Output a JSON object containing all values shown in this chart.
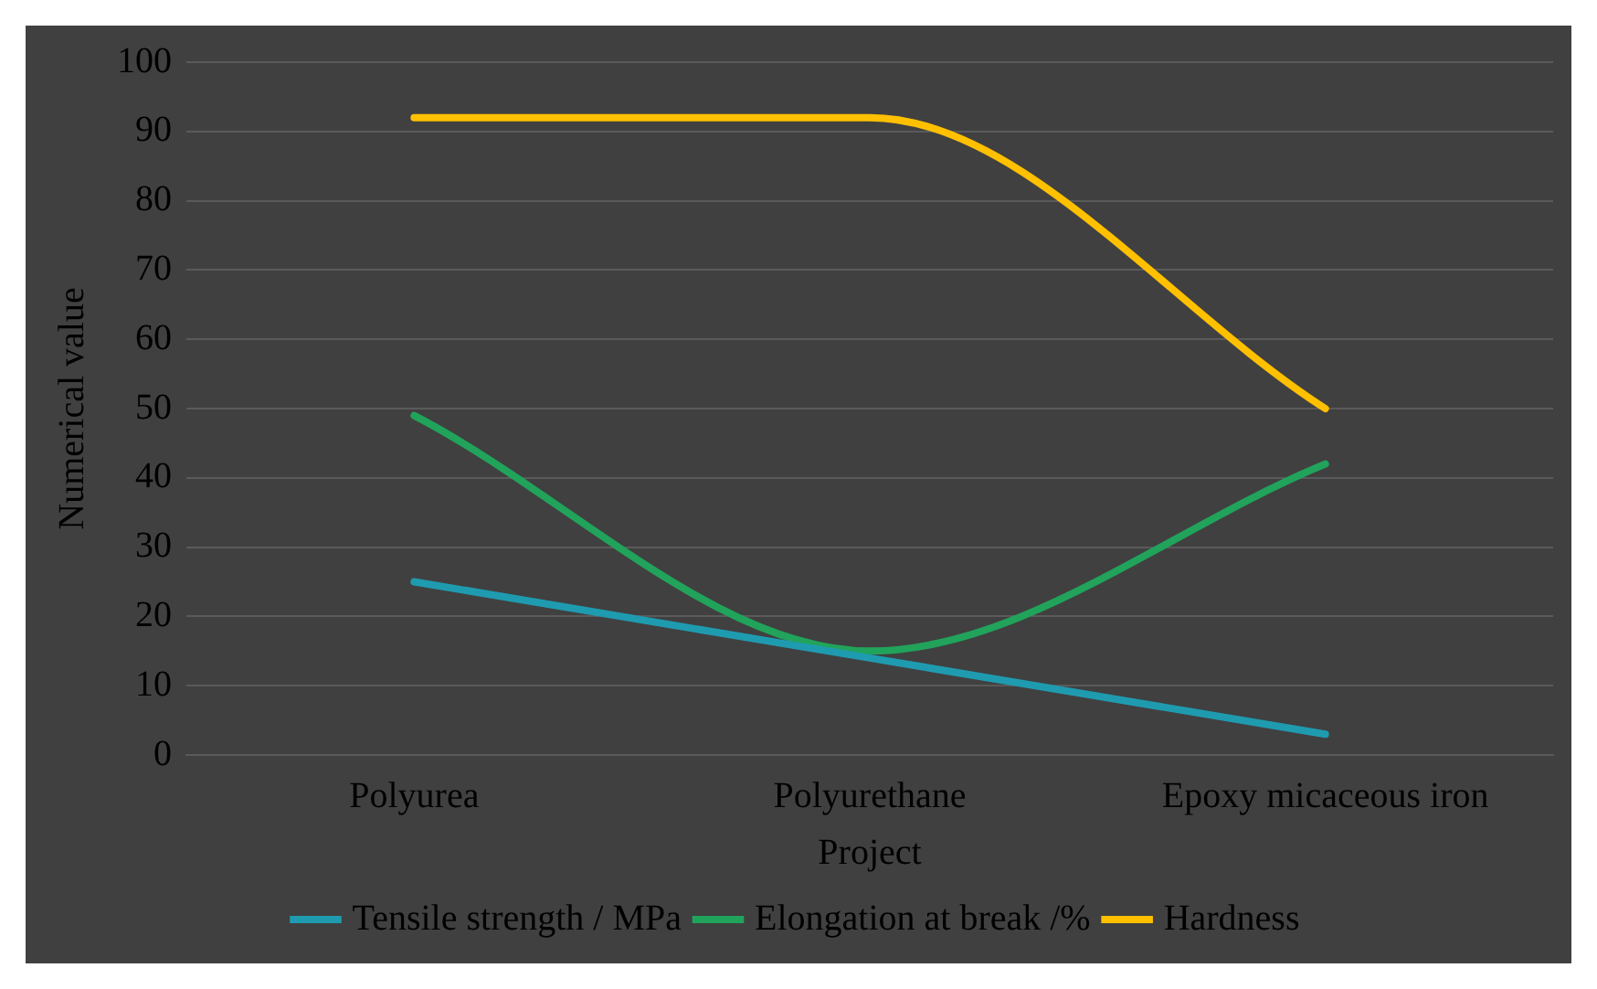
{
  "chart_data": {
    "type": "line",
    "xlabel": "Project",
    "ylabel": "Numerical value",
    "categories": [
      "Polyurea",
      "Polyurethane",
      "Epoxy micaceous iron"
    ],
    "series": [
      {
        "name": "Tensile strength / MPa",
        "color": "#1f9bb0",
        "values": [
          25,
          14,
          3
        ]
      },
      {
        "name": "Elongation at break /%",
        "color": "#21a35b",
        "values": [
          49,
          15,
          42
        ]
      },
      {
        "name": "Hardness",
        "color": "#ffc000",
        "values": [
          92,
          92,
          50
        ]
      }
    ],
    "ylim": [
      0,
      100
    ],
    "yticks": [
      0,
      10,
      20,
      30,
      40,
      50,
      60,
      70,
      80,
      90,
      100
    ],
    "grid": "y",
    "legend": "bottom",
    "marker": "none",
    "line_style": "solid"
  }
}
